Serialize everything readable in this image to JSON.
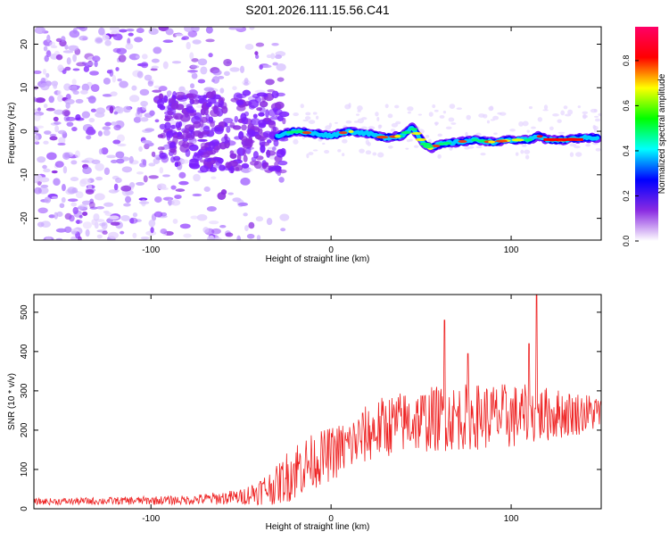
{
  "title": "S201.2026.111.15.56.C41",
  "chart_data": [
    {
      "type": "heatmap",
      "xlabel": "Height of straight line (km)",
      "ylabel": "Frequency (Hz)",
      "xlim": [
        -165,
        150
      ],
      "ylim": [
        -25,
        24
      ],
      "xticks": [
        -100,
        0,
        100
      ],
      "yticks": [
        -20,
        -10,
        0,
        10,
        20
      ],
      "colorbar": {
        "label": "Normalized spectral amplitude",
        "range": [
          0,
          0.95
        ],
        "ticks": [
          0.0,
          0.2,
          0.4,
          0.6,
          0.8
        ],
        "stops": [
          "#ffffff",
          "#8a2be2",
          "#0000ff",
          "#00ffff",
          "#00ff00",
          "#ffff00",
          "#ff0000",
          "#ff0066"
        ]
      },
      "ridge": {
        "description_points_x": [
          -30,
          -20,
          -10,
          0,
          10,
          20,
          30,
          40,
          45,
          50,
          55,
          60,
          70,
          80,
          90,
          100,
          110,
          115,
          120,
          130,
          140,
          148
        ],
        "freq_hz": [
          -1,
          0,
          -0.5,
          -1,
          0,
          -0.5,
          -1.5,
          -1,
          1,
          -2,
          -4,
          -3,
          -2.5,
          -2,
          -2.5,
          -2,
          -2,
          -1,
          -2,
          -2,
          -1.5,
          -1.5
        ]
      }
    },
    {
      "type": "line",
      "xlabel": "Height of straight line (km)",
      "ylabel": "SNR (10 * v/v)",
      "xlim": [
        -165,
        150
      ],
      "ylim": [
        0,
        545
      ],
      "xticks": [
        -100,
        0,
        100
      ],
      "yticks": [
        0,
        100,
        200,
        300,
        400,
        500
      ],
      "series": [
        {
          "name": "SNR",
          "color": "#ee2222",
          "envelope_x": [
            -165,
            -120,
            -80,
            -50,
            -30,
            -20,
            -10,
            0,
            10,
            20,
            30,
            40,
            60,
            80,
            100,
            120,
            150
          ],
          "envelope_mean": [
            18,
            20,
            22,
            30,
            60,
            100,
            120,
            140,
            160,
            190,
            210,
            220,
            230,
            235,
            235,
            240,
            245
          ],
          "envelope_spread": [
            8,
            10,
            12,
            20,
            50,
            80,
            70,
            70,
            70,
            75,
            80,
            80,
            85,
            85,
            85,
            70,
            45
          ],
          "peaks": [
            {
              "x": 63,
              "y": 480
            },
            {
              "x": 76,
              "y": 395
            },
            {
              "x": 114,
              "y": 545
            },
            {
              "x": 110,
              "y": 420
            }
          ]
        }
      ]
    }
  ]
}
